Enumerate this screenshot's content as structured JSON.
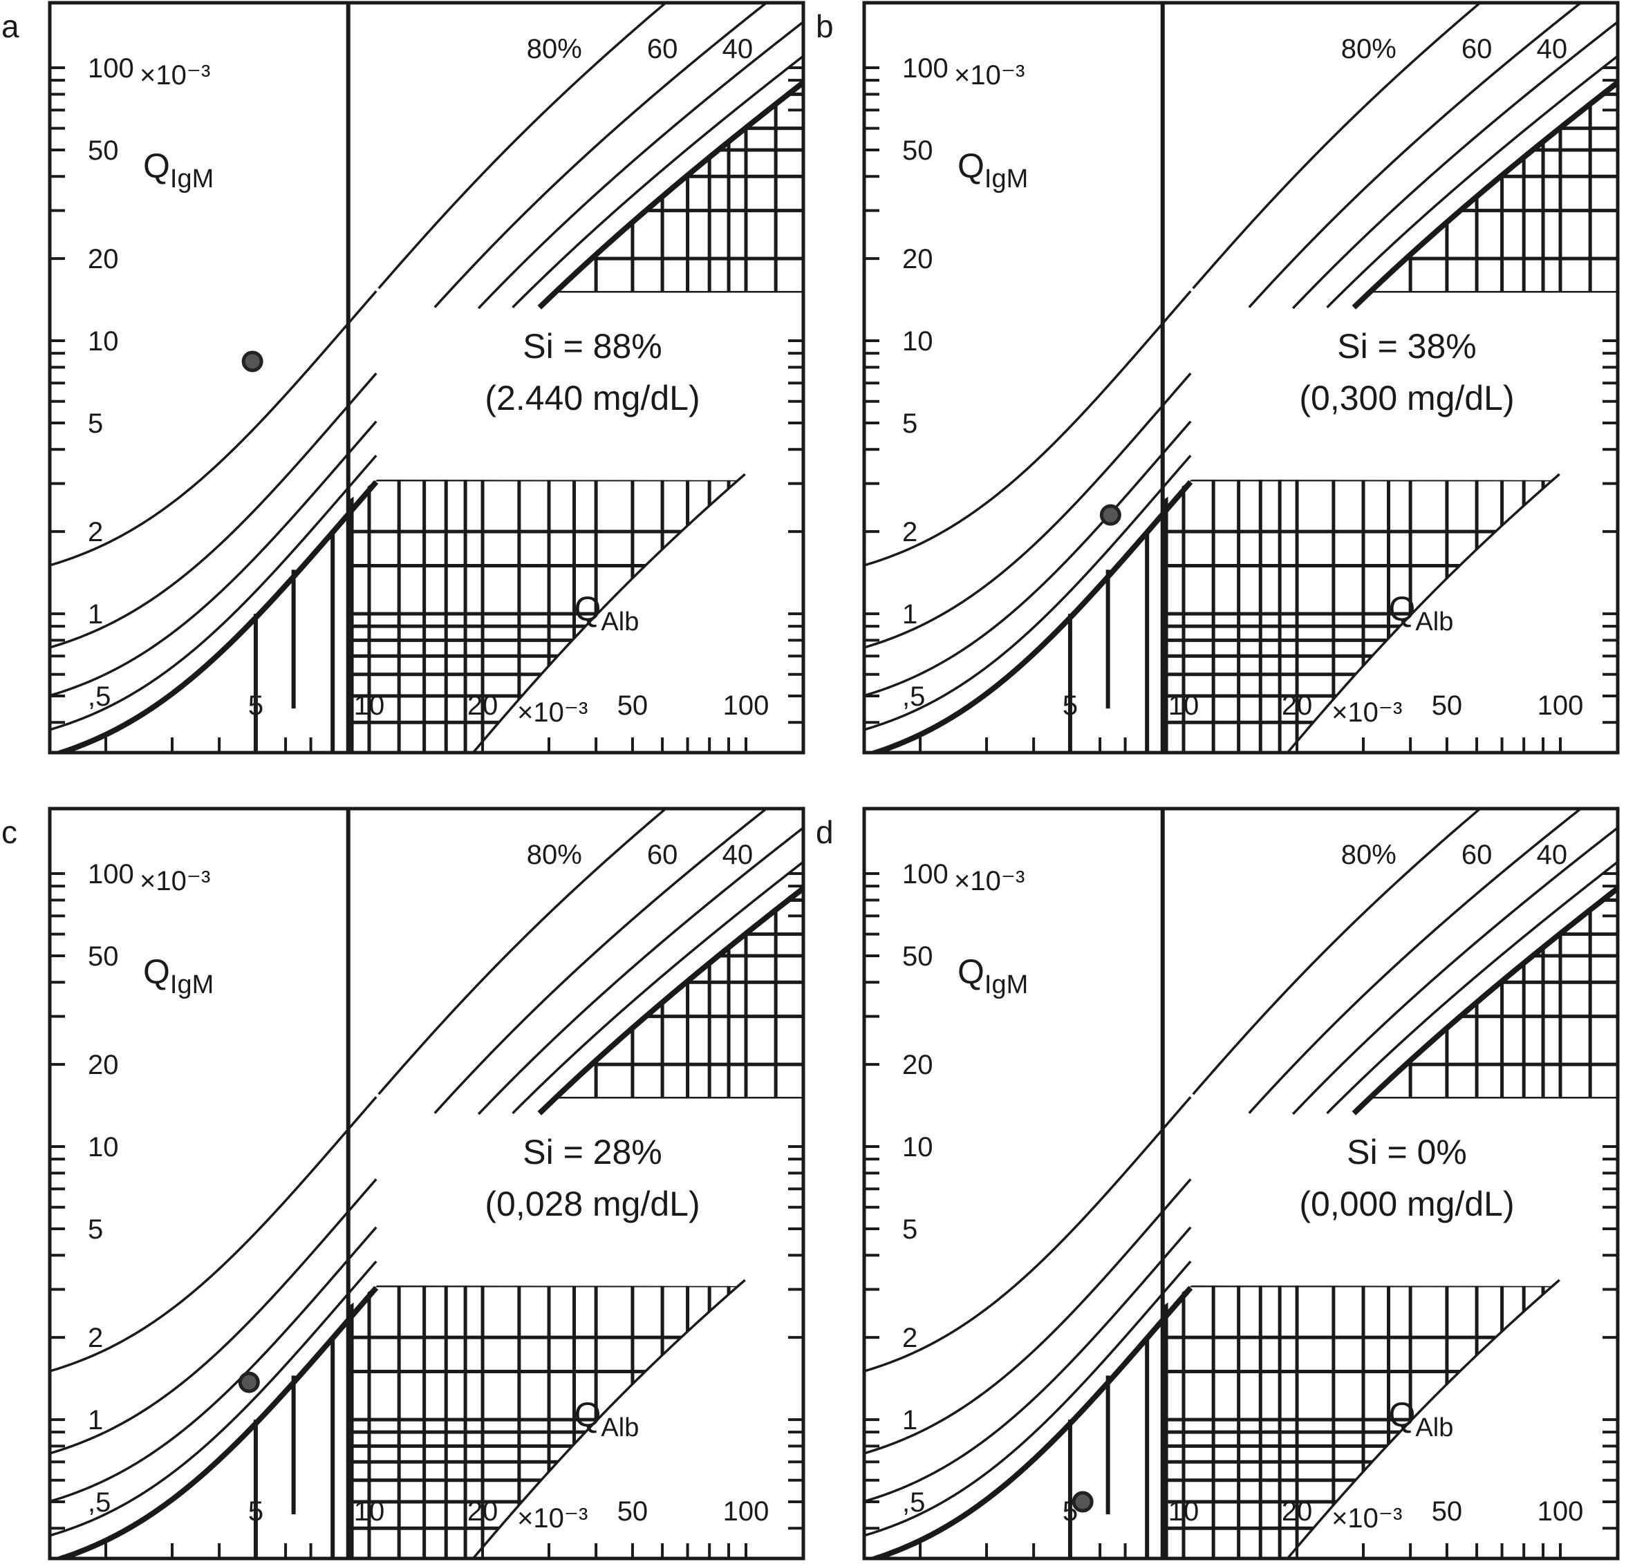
{
  "chart_data": [
    {
      "panel": "a",
      "type": "scatter",
      "si_text": "Si = 88%",
      "conc_text": "(2.440 mg/dL)",
      "point": {
        "x": 4.9,
        "y": 8.4
      }
    },
    {
      "panel": "b",
      "type": "scatter",
      "si_text": "Si = 38%",
      "conc_text": "(0,300 mg/dL)",
      "point": {
        "x": 6.4,
        "y": 2.3
      }
    },
    {
      "panel": "c",
      "type": "scatter",
      "si_text": "Si = 28%",
      "conc_text": "(0,028 mg/dL)",
      "point": {
        "x": 4.8,
        "y": 1.37
      }
    },
    {
      "panel": "d",
      "type": "scatter",
      "si_text": "Si = 0%",
      "conc_text": "(0,000 mg/dL)",
      "point": {
        "x": 5.4,
        "y": 0.5
      }
    }
  ],
  "axes": {
    "x_label_main": "Q",
    "x_label_sub": "Alb",
    "y_label_main": "Q",
    "y_label_sub": "IgM",
    "unit": "×10⁻³",
    "x_scale": "log",
    "y_scale": "log",
    "xlim": [
      1.42,
      142
    ],
    "ylim": [
      0.31,
      173
    ],
    "x_ticks": [
      {
        "v": 5,
        "label": "5"
      },
      {
        "v": 10,
        "label": "10"
      },
      {
        "v": 20,
        "label": "20"
      },
      {
        "v": 50,
        "label": "50"
      },
      {
        "v": 100,
        "label": "100"
      }
    ],
    "y_ticks": [
      {
        "v": 0.5,
        "label": ",5"
      },
      {
        "v": 1,
        "label": "1"
      },
      {
        "v": 2,
        "label": "2"
      },
      {
        "v": 5,
        "label": "5"
      },
      {
        "v": 10,
        "label": "10"
      },
      {
        "v": 20,
        "label": "20"
      },
      {
        "v": 50,
        "label": "50"
      },
      {
        "v": 100,
        "label": "100"
      }
    ]
  },
  "fraction_lines": [
    {
      "fraction": 0.8,
      "label": "80%"
    },
    {
      "fraction": 0.6,
      "label": "60"
    },
    {
      "fraction": 0.4,
      "label": "40"
    },
    {
      "fraction": 0.2,
      "label": ""
    }
  ],
  "colors": {
    "line": "#1a1a1a",
    "point": "#555555",
    "background": "#ffffff"
  }
}
